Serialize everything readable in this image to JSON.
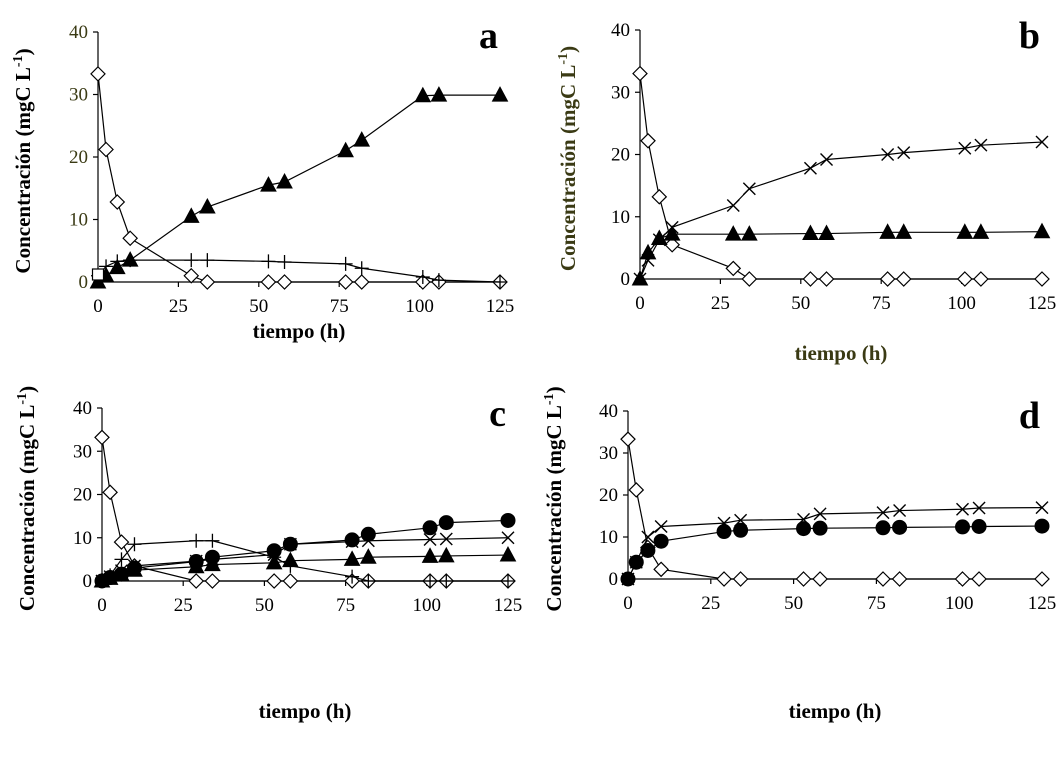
{
  "chart_data": [
    {
      "type": "line",
      "panel_label": "a",
      "xlabel": "tiempo (h)",
      "ylabel": "Concentración (mgC L",
      "ylabel_sup": "-1",
      "ylabel_close": ")",
      "xlim": [
        0,
        125
      ],
      "ylim": [
        0,
        40
      ],
      "xticks": [
        "0",
        "25",
        "50",
        "75",
        "100",
        "125"
      ],
      "yticks": [
        "0",
        "10",
        "20",
        "30",
        "40"
      ],
      "ytick_color": "#3a3a14",
      "xlabel_color": "#000000",
      "ylabel_color": "#000000",
      "series": [
        {
          "marker": "diamond",
          "x": [
            0,
            2.5,
            6,
            10,
            29,
            34,
            53,
            58,
            77,
            82,
            101,
            106,
            125
          ],
          "y": [
            33.3,
            21.2,
            12.8,
            7,
            1,
            0,
            0,
            0,
            0,
            0,
            0,
            0,
            0
          ]
        },
        {
          "marker": "triangle",
          "x": [
            0,
            2.5,
            6,
            10,
            29,
            34,
            53,
            58,
            77,
            82,
            101,
            106,
            125
          ],
          "y": [
            0,
            1,
            2.3,
            3.5,
            10.5,
            12,
            15.5,
            16,
            21,
            22.7,
            29.8,
            29.9,
            29.9
          ]
        },
        {
          "marker": "plus",
          "x": [
            0,
            2.5,
            6,
            10,
            29,
            34,
            53,
            58,
            77,
            82,
            101,
            106,
            125
          ],
          "y": [
            1,
            2.5,
            3.3,
            3.5,
            3.5,
            3.5,
            3.3,
            3.2,
            2.9,
            2.2,
            0.8,
            0.3,
            0
          ]
        },
        {
          "marker": "square",
          "x": [
            0
          ],
          "y": [
            1.2
          ]
        }
      ]
    },
    {
      "type": "line",
      "panel_label": "b",
      "xlabel": "tiempo (h)",
      "ylabel": "Concentración (mgC L",
      "ylabel_sup": "-1",
      "ylabel_close": ")",
      "xlim": [
        0,
        125
      ],
      "ylim": [
        0,
        40
      ],
      "xticks": [
        "0",
        "25",
        "50",
        "75",
        "100",
        "125"
      ],
      "yticks": [
        "0",
        "10",
        "20",
        "30",
        "40"
      ],
      "ytick_color": "#000000",
      "xlabel_color": "#3a3a14",
      "ylabel_color": "#3a3a14",
      "series": [
        {
          "marker": "diamond",
          "x": [
            0,
            2.5,
            6,
            10,
            29,
            34,
            53,
            58,
            77,
            82,
            101,
            106,
            125
          ],
          "y": [
            33,
            22.2,
            13.2,
            5.5,
            1.7,
            0,
            0,
            0,
            0,
            0,
            0,
            0,
            0
          ]
        },
        {
          "marker": "triangle",
          "x": [
            0,
            2.5,
            6,
            10,
            29,
            34,
            53,
            58,
            77,
            82,
            101,
            106,
            125
          ],
          "y": [
            0,
            4.2,
            6.5,
            7.2,
            7.2,
            7.2,
            7.3,
            7.3,
            7.5,
            7.5,
            7.5,
            7.5,
            7.6
          ]
        },
        {
          "marker": "cross",
          "x": [
            0,
            2.5,
            6,
            10,
            29,
            34,
            53,
            58,
            77,
            82,
            101,
            106,
            125
          ],
          "y": [
            0,
            3,
            6.3,
            8.3,
            11.8,
            14.5,
            17.8,
            19.2,
            20,
            20.3,
            21,
            21.5,
            22
          ]
        }
      ]
    },
    {
      "type": "line",
      "panel_label": "c",
      "xlabel": "tiempo (h)",
      "ylabel": "Concentración (mgC L",
      "ylabel_sup": "-1",
      "ylabel_close": ")",
      "xlim": [
        0,
        125
      ],
      "ylim": [
        0,
        40
      ],
      "xticks": [
        "0",
        "25",
        "50",
        "75",
        "100",
        "125"
      ],
      "yticks": [
        "0",
        "10",
        "20",
        "30",
        "40"
      ],
      "ytick_color": "#000000",
      "xlabel_color": "#000000",
      "ylabel_color": "#000000",
      "series": [
        {
          "marker": "diamond",
          "x": [
            0,
            2.5,
            6,
            10,
            29,
            34,
            53,
            58,
            77,
            82,
            101,
            106,
            125
          ],
          "y": [
            33.2,
            20.5,
            9,
            3.5,
            0,
            0,
            0,
            0,
            0,
            0,
            0,
            0,
            0
          ]
        },
        {
          "marker": "plus",
          "x": [
            0,
            2.5,
            6,
            10,
            29,
            34,
            53,
            58,
            77,
            82,
            101,
            106,
            125
          ],
          "y": [
            0,
            1.3,
            5,
            8.5,
            9.3,
            9.3,
            5.5,
            3.5,
            1,
            0,
            0,
            0,
            0
          ]
        },
        {
          "marker": "triangle",
          "x": [
            0,
            2.5,
            6,
            10,
            29,
            34,
            53,
            58,
            77,
            82,
            101,
            106,
            125
          ],
          "y": [
            0,
            0.6,
            1.4,
            2.5,
            3.3,
            3.8,
            4.2,
            4.7,
            5,
            5.5,
            5.7,
            5.8,
            6
          ]
        },
        {
          "marker": "cross",
          "x": [
            0,
            2.5,
            6,
            10,
            29,
            34,
            53,
            58,
            77,
            82,
            101,
            106,
            125
          ],
          "y": [
            0,
            1,
            2.4,
            3.5,
            4.6,
            5,
            6.1,
            8.5,
            9.1,
            9.3,
            9.6,
            9.7,
            10
          ]
        },
        {
          "marker": "circle",
          "x": [
            0,
            2.5,
            6,
            10,
            29,
            34,
            53,
            58,
            77,
            82,
            101,
            106,
            125
          ],
          "y": [
            0,
            0.8,
            1.6,
            3,
            4.5,
            5.5,
            7,
            8.5,
            9.5,
            10.8,
            12.3,
            13.5,
            14
          ]
        }
      ]
    },
    {
      "type": "line",
      "panel_label": "d",
      "xlabel": "tiempo (h)",
      "ylabel": "Concentración (mgC L",
      "ylabel_sup": "-1",
      "ylabel_close": ")",
      "xlim": [
        0,
        125
      ],
      "ylim": [
        0,
        40
      ],
      "xticks": [
        "0",
        "25",
        "50",
        "75",
        "100",
        "125"
      ],
      "yticks": [
        "0",
        "10",
        "20",
        "30",
        "40"
      ],
      "ytick_color": "#000000",
      "xlabel_color": "#000000",
      "ylabel_color": "#000000",
      "series": [
        {
          "marker": "diamond",
          "x": [
            0,
            2.5,
            6,
            10,
            29,
            34,
            53,
            58,
            77,
            82,
            101,
            106,
            125
          ],
          "y": [
            33.3,
            21.2,
            7.5,
            2.3,
            0,
            0,
            0,
            0,
            0,
            0,
            0,
            0,
            0
          ]
        },
        {
          "marker": "cross",
          "x": [
            0,
            2.5,
            6,
            10,
            29,
            34,
            53,
            58,
            77,
            82,
            101,
            106,
            125
          ],
          "y": [
            0,
            4,
            10,
            12.5,
            13.3,
            14,
            14.2,
            15.5,
            15.8,
            16.3,
            16.6,
            16.9,
            17
          ]
        },
        {
          "marker": "circle",
          "x": [
            0,
            2.5,
            6,
            10,
            29,
            34,
            53,
            58,
            77,
            82,
            101,
            106,
            125
          ],
          "y": [
            0,
            4,
            6.8,
            9,
            11.3,
            11.6,
            12,
            12.1,
            12.2,
            12.3,
            12.4,
            12.5,
            12.6
          ]
        }
      ]
    }
  ]
}
